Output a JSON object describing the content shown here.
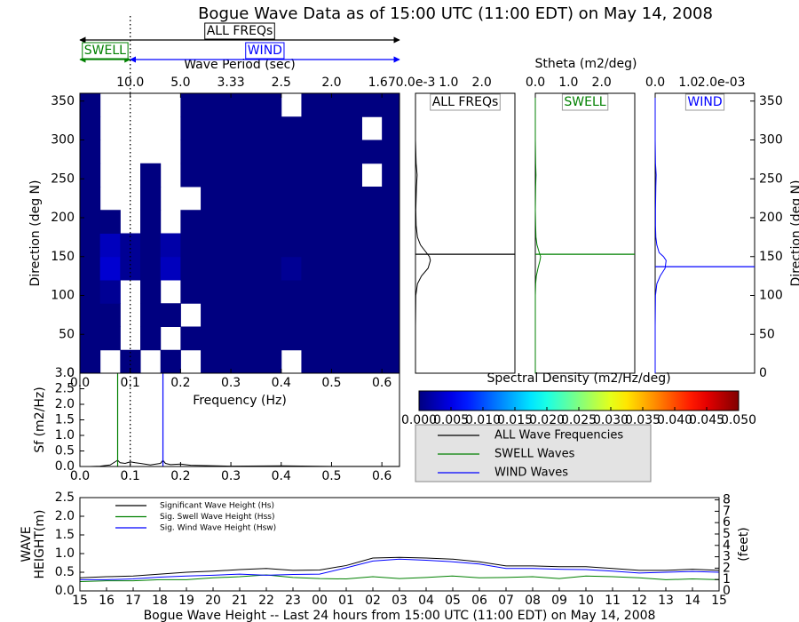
{
  "chart_data": [
    {
      "type": "heatmap",
      "title": "Bogue Wave Data as of 15:00 UTC (11:00 EDT) on May 14, 2008",
      "xlabel": "Frequency (Hz)",
      "ylabel": "Direction (deg N)",
      "x2label": "Wave Period (sec)",
      "xlim": [
        0,
        0.635
      ],
      "ylim": [
        0,
        360
      ],
      "xticks": [
        {
          "value": 0,
          "label": "0.0"
        },
        0.1,
        0.2,
        0.3,
        0.4,
        0.5,
        0.6
      ],
      "yticks": [
        0,
        50,
        100,
        150,
        200,
        250,
        300,
        350
      ],
      "x2ticks": [
        {
          "value": 0.1,
          "label": "10.0"
        },
        {
          "value": 0.2,
          "label": "5.0"
        },
        {
          "value": 0.3,
          "label": "3.33"
        },
        {
          "value": 0.4,
          "label": "2.5"
        },
        {
          "value": 0.5,
          "label": "2.0"
        },
        {
          "value": 0.6,
          "label": "1.67"
        }
      ],
      "bands": [
        {
          "label": "ALL FREQs",
          "from": 0,
          "to": 0.635,
          "color": "#000000"
        },
        {
          "label": "SWELL",
          "from": 0,
          "to": 0.1,
          "color": "#008000"
        },
        {
          "label": "WIND",
          "from": 0.1,
          "to": 0.635,
          "color": "#0000ff"
        }
      ],
      "separator": 0.1,
      "xbins": [
        0,
        0.04,
        0.08,
        0.12,
        0.16,
        0.2,
        0.24,
        0.28,
        0.32,
        0.36,
        0.4,
        0.44,
        0.48,
        0.52,
        0.56,
        0.6,
        0.64
      ],
      "ybins": [
        0,
        30,
        60,
        90,
        120,
        150,
        180,
        210,
        240,
        270,
        300,
        330,
        360
      ],
      "values": [
        [
          0,
          null,
          0,
          null,
          0,
          null,
          0,
          0,
          0,
          0,
          null,
          0,
          0,
          0,
          0,
          0
        ],
        [
          0,
          0,
          null,
          0,
          null,
          0,
          0,
          0,
          0,
          0,
          0,
          0,
          0,
          0,
          0,
          0
        ],
        [
          0,
          0,
          null,
          0,
          0,
          null,
          0,
          0,
          0,
          0,
          0,
          0,
          0,
          0,
          0,
          0
        ],
        [
          0,
          0.001,
          null,
          0,
          null,
          0,
          0,
          0,
          0,
          0,
          0,
          0,
          0,
          0,
          0,
          0
        ],
        [
          0,
          0.004,
          0.001,
          0,
          0.003,
          0,
          0,
          0,
          0,
          0,
          0.001,
          0,
          0,
          0,
          0,
          0
        ],
        [
          0,
          0.003,
          0.001,
          0,
          0.002,
          0,
          0,
          0,
          0,
          0,
          0,
          0,
          0,
          0,
          0,
          0
        ],
        [
          0,
          0,
          null,
          0,
          null,
          0,
          0,
          0,
          0,
          0,
          0,
          0,
          0,
          0,
          0,
          0
        ],
        [
          0,
          null,
          null,
          0,
          null,
          null,
          0,
          0,
          0,
          0,
          0,
          0,
          0,
          0,
          0,
          0
        ],
        [
          0,
          null,
          null,
          0,
          null,
          0,
          0,
          0,
          0,
          0,
          0,
          0,
          0,
          0,
          null,
          0
        ],
        [
          0,
          null,
          null,
          null,
          null,
          0,
          0,
          0,
          0,
          0,
          0,
          0,
          0,
          0,
          0,
          0
        ],
        [
          0,
          null,
          null,
          null,
          null,
          0,
          0,
          0,
          0,
          0,
          0,
          0,
          0,
          0,
          null,
          0
        ],
        [
          0,
          null,
          null,
          null,
          null,
          0,
          0,
          0,
          0,
          0,
          null,
          0,
          0,
          0,
          0,
          0
        ]
      ],
      "colorbar": {
        "label": "Spectral Density (m2/Hz/deg)",
        "clim": [
          0,
          0.05
        ],
        "ticks": [
          {
            "value": 0,
            "label": "0.000"
          },
          0.005,
          {
            "value": 0.01,
            "label": "0.010"
          },
          0.015,
          {
            "value": 0.02,
            "label": "0.020"
          },
          0.025,
          {
            "value": 0.03,
            "label": "0.030"
          },
          0.035,
          {
            "value": 0.04,
            "label": "0.040"
          },
          0.045,
          {
            "value": 0.05,
            "label": "0.050"
          }
        ]
      }
    },
    {
      "type": "direction",
      "title": "ALL FREQs",
      "xlabel": "Stheta (m2/deg)",
      "color": "#000000",
      "xlim": [
        0,
        3
      ],
      "ylim": [
        0,
        360
      ],
      "xticks": [
        {
          "value": 0,
          "label": "0.0e-3"
        },
        {
          "value": 1,
          "label": "1.0"
        },
        {
          "value": 2,
          "label": "2.0"
        }
      ],
      "directions": [
        0,
        60,
        100,
        115,
        125,
        135,
        145,
        150,
        155,
        165,
        175,
        190,
        210,
        240,
        255,
        270,
        300,
        360
      ],
      "values": [
        0,
        0,
        0.01,
        0.06,
        0.18,
        0.38,
        0.45,
        0.42,
        0.33,
        0.15,
        0.06,
        0.02,
        0.01,
        0.03,
        0.05,
        0.02,
        0,
        0
      ],
      "mean_direction": 153
    },
    {
      "type": "direction",
      "title": "SWELL",
      "color": "#008000",
      "xlim": [
        0,
        3
      ],
      "ylim": [
        0,
        360
      ],
      "xticks": [
        {
          "value": 0,
          "label": "0.0"
        },
        {
          "value": 1,
          "label": "1.0"
        },
        {
          "value": 2,
          "label": "2.0"
        }
      ],
      "directions": [
        0,
        60,
        100,
        115,
        125,
        135,
        145,
        150,
        155,
        165,
        175,
        190,
        210,
        240,
        255,
        270,
        300,
        360
      ],
      "values": [
        0,
        0,
        0,
        0.01,
        0.03,
        0.08,
        0.14,
        0.16,
        0.12,
        0.05,
        0.02,
        0.01,
        0,
        0.01,
        0.02,
        0.01,
        0,
        0
      ],
      "mean_direction": 153
    },
    {
      "type": "direction",
      "title": "WIND",
      "color": "#0000ff",
      "ylabel": "Direction (deg N)",
      "xlim": [
        0,
        3
      ],
      "ylim": [
        0,
        360
      ],
      "xticks": [
        {
          "value": 0,
          "label": "0.0"
        },
        {
          "value": 1,
          "label": "1.0"
        },
        {
          "value": 2,
          "label": "2.0e-03"
        }
      ],
      "yticks": [
        0,
        50,
        100,
        150,
        200,
        250,
        300,
        350
      ],
      "directions": [
        0,
        60,
        100,
        115,
        125,
        135,
        145,
        150,
        155,
        165,
        175,
        190,
        210,
        240,
        255,
        270,
        300,
        360
      ],
      "values": [
        0,
        0,
        0.01,
        0.05,
        0.15,
        0.3,
        0.33,
        0.25,
        0.12,
        0.05,
        0.02,
        0.01,
        0.01,
        0.02,
        0.03,
        0.01,
        0,
        0
      ],
      "mean_direction": 137
    },
    {
      "type": "spectrum",
      "ylabel": "Sf (m2/Hz)",
      "xlim": [
        0,
        0.635
      ],
      "ylim": [
        0,
        3
      ],
      "xticks": [
        {
          "value": 0,
          "label": "0.0"
        },
        0.1,
        0.2,
        0.3,
        0.4,
        0.5,
        0.6
      ],
      "yticks": [
        {
          "value": 0,
          "label": "0.0"
        },
        0.5,
        {
          "value": 1,
          "label": "1.0"
        },
        1.5,
        {
          "value": 2,
          "label": "2.0"
        },
        2.5,
        {
          "value": 3,
          "label": "3.0"
        }
      ],
      "x": [
        0,
        0.02,
        0.04,
        0.06,
        0.07,
        0.075,
        0.08,
        0.09,
        0.1,
        0.11,
        0.12,
        0.14,
        0.16,
        0.165,
        0.17,
        0.18,
        0.2,
        0.22,
        0.25,
        0.3,
        0.4,
        0.5,
        0.6,
        0.635
      ],
      "series": [
        {
          "name": "ALL Wave Frequencies",
          "color": "#000000",
          "values": [
            0,
            0,
            0.01,
            0.05,
            0.15,
            0.2,
            0.12,
            0.1,
            0.15,
            0.12,
            0.1,
            0.05,
            0.1,
            0.2,
            0.1,
            0.06,
            0.08,
            0.04,
            0.03,
            0.01,
            0.02,
            0.005,
            0.003,
            0.003
          ]
        },
        {
          "name": "SWELL Waves",
          "color": "#008000",
          "peak": 0.075
        },
        {
          "name": "WIND Waves",
          "color": "#0000ff",
          "peak": 0.165
        }
      ]
    },
    {
      "type": "line",
      "ylabel": [
        "WAVE",
        "HEIGHT(m)"
      ],
      "y2label": "(feet)",
      "xlabel": "Bogue Wave Height -- Last 24 hours from 15:00 UTC (11:00 EDT) on May 14, 2008",
      "categories": [
        "15",
        "16",
        "17",
        "18",
        "19",
        "20",
        "21",
        "22",
        "23",
        "00",
        "01",
        "02",
        "03",
        "04",
        "05",
        "06",
        "07",
        "08",
        "09",
        "10",
        "11",
        "12",
        "13",
        "14",
        "15"
      ],
      "ylim": [
        0,
        2.5
      ],
      "yticks": [
        {
          "value": 0,
          "label": "0.0"
        },
        0.5,
        {
          "value": 1,
          "label": "1.0"
        },
        1.5,
        {
          "value": 2,
          "label": "2.0"
        },
        2.5
      ],
      "y2lim": [
        0,
        8.2
      ],
      "y2ticks": [
        0,
        1,
        2,
        3,
        4,
        5,
        6,
        7,
        8
      ],
      "legend": "upper left",
      "series": [
        {
          "name": "Significant Wave Height (Hs)",
          "color": "#000000",
          "values": [
            0.35,
            0.38,
            0.4,
            0.45,
            0.5,
            0.53,
            0.57,
            0.6,
            0.55,
            0.56,
            0.68,
            0.88,
            0.9,
            0.88,
            0.85,
            0.78,
            0.67,
            0.67,
            0.65,
            0.65,
            0.6,
            0.55,
            0.55,
            0.58,
            0.55
          ]
        },
        {
          "name": "Sig. Swell Wave Height (Hss)",
          "color": "#008000",
          "values": [
            0.25,
            0.27,
            0.27,
            0.3,
            0.3,
            0.35,
            0.38,
            0.43,
            0.36,
            0.33,
            0.32,
            0.38,
            0.33,
            0.36,
            0.4,
            0.35,
            0.36,
            0.38,
            0.33,
            0.4,
            0.38,
            0.35,
            0.3,
            0.32,
            0.3
          ]
        },
        {
          "name": "Sig. Wind Wave Height (Hsw)",
          "color": "#0000ff",
          "values": [
            0.3,
            0.3,
            0.32,
            0.37,
            0.4,
            0.42,
            0.45,
            0.42,
            0.44,
            0.45,
            0.62,
            0.8,
            0.85,
            0.82,
            0.78,
            0.72,
            0.6,
            0.6,
            0.58,
            0.57,
            0.53,
            0.48,
            0.5,
            0.52,
            0.5
          ]
        }
      ]
    }
  ]
}
